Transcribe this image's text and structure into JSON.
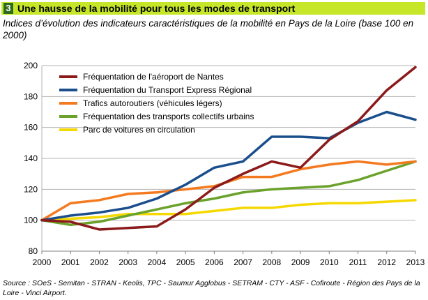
{
  "header": {
    "number": "3",
    "title": "Une hausse de la mobilité pour tous les modes de transport",
    "subtitle": "Indices d’évolution des indicateurs caractéristiques de la mobilité en Pays de la Loire (base 100 en 2000)"
  },
  "source": "Source : SOeS - Semitan - STRAN - Keolis, TPC - Saumur Agglobus - SETRAM - CTY - ASF - Cofiroute - Région des Pays de la Loire - Vinci Airport.",
  "chart_data": {
    "type": "line",
    "x": [
      2000,
      2001,
      2002,
      2003,
      2004,
      2005,
      2006,
      2007,
      2008,
      2009,
      2010,
      2011,
      2012,
      2013
    ],
    "xlim": [
      2000,
      2013
    ],
    "ylim": [
      80,
      200
    ],
    "yticks": [
      80,
      100,
      120,
      140,
      160,
      180,
      200
    ],
    "grid": true,
    "legend": "top-left",
    "series": [
      {
        "name": "Fréquentation de l'aéroport de Nantes",
        "color": "#8b1a1a",
        "values": [
          100,
          99,
          94,
          95,
          96,
          107,
          121,
          130,
          138,
          134,
          152,
          164,
          184,
          199
        ]
      },
      {
        "name": "Fréquentation du Transport Express Régional",
        "color": "#1a4e8c",
        "values": [
          100,
          103,
          105,
          108,
          114,
          123,
          134,
          138,
          154,
          154,
          153,
          163,
          170,
          165
        ]
      },
      {
        "name": "Trafics autoroutiers (véhicules légers)",
        "color": "#f47a20",
        "values": [
          100,
          111,
          113,
          117,
          118,
          120,
          122,
          128,
          128,
          133,
          136,
          138,
          136,
          138
        ]
      },
      {
        "name": "Fréquentation des transports collectifs urbains",
        "color": "#6aa22c",
        "values": [
          100,
          97,
          99,
          103,
          107,
          111,
          114,
          118,
          120,
          121,
          122,
          126,
          132,
          138
        ]
      },
      {
        "name": "Parc de voitures en circulation",
        "color": "#f5d800",
        "values": [
          100,
          101,
          102,
          104,
          104,
          104,
          106,
          108,
          108,
          110,
          111,
          111,
          112,
          113
        ]
      }
    ]
  }
}
